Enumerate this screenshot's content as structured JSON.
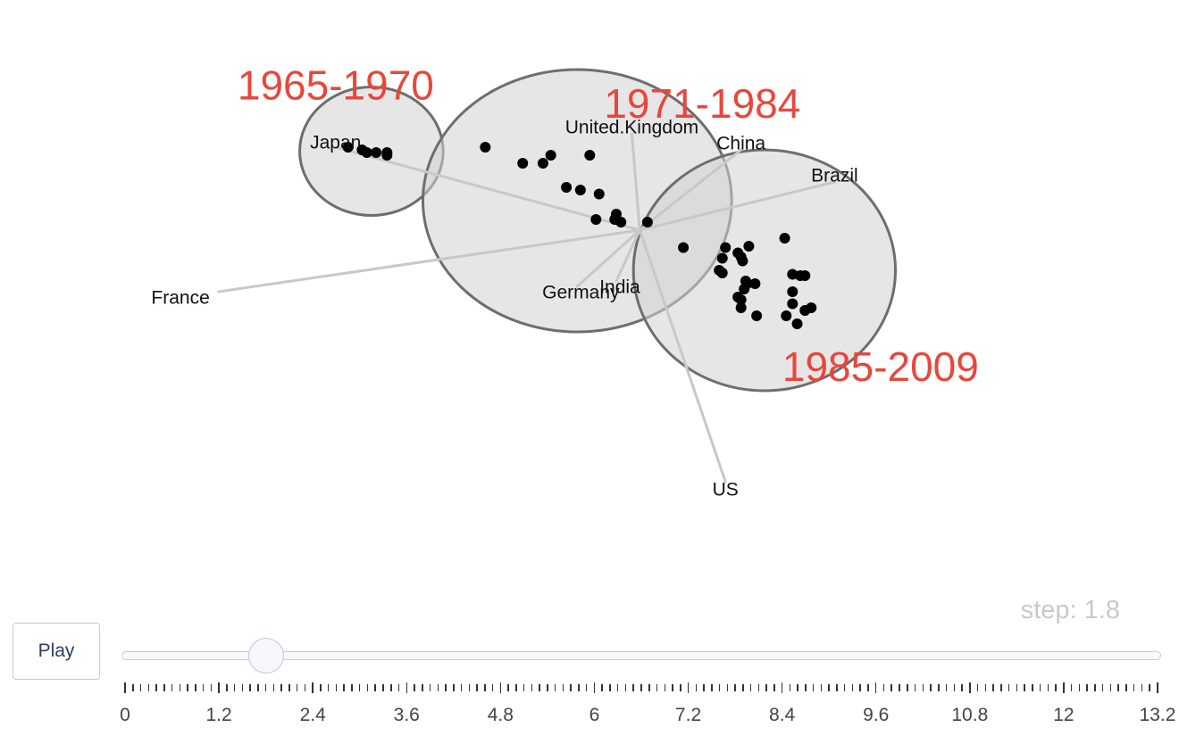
{
  "chart_data": {
    "type": "scatter",
    "title": "",
    "xlabel": "",
    "ylabel": "",
    "grid": false,
    "axes_visible": false,
    "points": [
      {
        "x": 4.62,
        "y": 1.3
      },
      {
        "x": 5.1,
        "y": 1.18
      },
      {
        "x": 5.36,
        "y": 1.18
      },
      {
        "x": 5.46,
        "y": 1.24
      },
      {
        "x": 5.96,
        "y": 1.24
      },
      {
        "x": 5.66,
        "y": 1.0
      },
      {
        "x": 5.84,
        "y": 0.98
      },
      {
        "x": 6.08,
        "y": 0.95
      },
      {
        "x": 6.3,
        "y": 0.8
      },
      {
        "x": 6.04,
        "y": 0.76
      },
      {
        "x": 6.28,
        "y": 0.76
      },
      {
        "x": 6.36,
        "y": 0.74
      },
      {
        "x": 6.7,
        "y": 0.74
      },
      {
        "x": 7.16,
        "y": 0.55
      },
      {
        "x": 7.7,
        "y": 0.55
      },
      {
        "x": 7.66,
        "y": 0.47
      },
      {
        "x": 7.86,
        "y": 0.51
      },
      {
        "x": 8.0,
        "y": 0.56
      },
      {
        "x": 7.9,
        "y": 0.48
      },
      {
        "x": 7.92,
        "y": 0.45
      },
      {
        "x": 7.62,
        "y": 0.38
      },
      {
        "x": 7.66,
        "y": 0.36
      },
      {
        "x": 7.96,
        "y": 0.3
      },
      {
        "x": 7.98,
        "y": 0.28
      },
      {
        "x": 8.08,
        "y": 0.28
      },
      {
        "x": 7.94,
        "y": 0.24
      },
      {
        "x": 7.86,
        "y": 0.18
      },
      {
        "x": 7.9,
        "y": 0.16
      },
      {
        "x": 7.9,
        "y": 0.1
      },
      {
        "x": 8.1,
        "y": 0.04
      },
      {
        "x": 8.46,
        "y": 0.62
      },
      {
        "x": 8.56,
        "y": 0.35
      },
      {
        "x": 8.66,
        "y": 0.34
      },
      {
        "x": 8.72,
        "y": 0.34
      },
      {
        "x": 8.56,
        "y": 0.22
      },
      {
        "x": 8.56,
        "y": 0.13
      },
      {
        "x": 8.72,
        "y": 0.08
      },
      {
        "x": 8.8,
        "y": 0.1
      },
      {
        "x": 8.48,
        "y": 0.04
      },
      {
        "x": 8.62,
        "y": -0.02
      },
      {
        "x": 3.04,
        "y": 1.28
      },
      {
        "x": 3.1,
        "y": 1.26
      },
      {
        "x": 3.22,
        "y": 1.26
      },
      {
        "x": 3.36,
        "y": 1.26
      },
      {
        "x": 3.36,
        "y": 1.24
      },
      {
        "x": 2.86,
        "y": 1.3
      }
    ],
    "loadings": [
      {
        "name": "Japan",
        "x": 2.7,
        "y": 1.3
      },
      {
        "name": "United.Kingdom",
        "x": 6.5,
        "y": 1.4
      },
      {
        "name": "China",
        "x": 7.9,
        "y": 1.28
      },
      {
        "name": "Brazil",
        "x": 9.1,
        "y": 1.04
      },
      {
        "name": "France",
        "x": 1.2,
        "y": 0.22
      },
      {
        "name": "Germany",
        "x": 5.8,
        "y": 0.26
      },
      {
        "name": "India",
        "x": 6.3,
        "y": 0.3
      },
      {
        "name": "US",
        "x": 7.7,
        "y": -1.2
      }
    ],
    "loading_origin": {
      "x": 6.6,
      "y": 0.68
    },
    "groups": [
      {
        "label": "1965-1970",
        "cx": 3.16,
        "cy": 1.27,
        "rx": 0.92,
        "ry": 0.48
      },
      {
        "label": "1971-1984",
        "cx": 5.8,
        "cy": 0.9,
        "rx": 1.98,
        "ry": 0.98
      },
      {
        "label": "1985-2009",
        "cx": 8.2,
        "cy": 0.38,
        "rx": 1.68,
        "ry": 0.9
      }
    ]
  },
  "controls": {
    "play_label": "Play",
    "step_prefix": "step: ",
    "current_step": 1.8,
    "current_step_text": "1.8",
    "slider_min": 0,
    "slider_max": 13.2,
    "slider_minor_step": 0.1,
    "tick_labels": [
      "0",
      "1.2",
      "2.4",
      "3.6",
      "4.8",
      "6",
      "7.2",
      "8.4",
      "9.6",
      "10.8",
      "12",
      "13.2"
    ]
  },
  "colors": {
    "period_label": "#e8473c",
    "point": "#000000",
    "loading_line": "#c8c8c8",
    "ellipse_stroke": "#6e6e6e",
    "step_text": "#c9c9c9"
  }
}
